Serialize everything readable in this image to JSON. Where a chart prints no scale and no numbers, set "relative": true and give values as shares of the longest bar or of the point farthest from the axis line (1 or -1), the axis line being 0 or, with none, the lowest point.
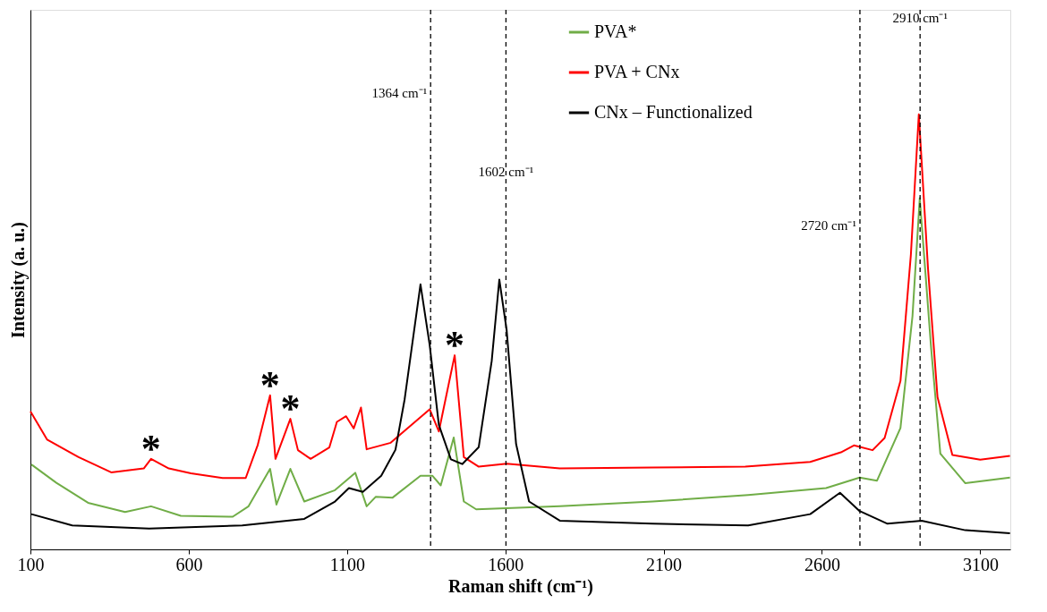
{
  "chart_data": {
    "type": "line",
    "relative": true,
    "xlabel": "Raman shift (cm⁻¹)",
    "ylabel": "Intensity (a. u.)",
    "xlim": [
      100,
      3195
    ],
    "xticks": [
      100,
      600,
      1100,
      1600,
      2100,
      2600,
      3100
    ],
    "grid": false,
    "legend": "top right",
    "line_style": "solid",
    "marker": "none",
    "series": [
      {
        "name": "PVA*",
        "color": "#70ad47",
        "x": [
          103,
          182,
          282,
          399,
          481,
          575,
          739,
          789,
          857,
          877,
          921,
          965,
          1062,
          1126,
          1162,
          1191,
          1244,
          1332,
          1370,
          1396,
          1437,
          1469,
          1508,
          1772,
          2065,
          2367,
          2613,
          2719,
          2774,
          2848,
          2886,
          2909,
          2945,
          2974,
          3053,
          3194
        ],
        "values": [
          0.195,
          0.153,
          0.107,
          0.086,
          0.099,
          0.077,
          0.075,
          0.099,
          0.185,
          0.103,
          0.185,
          0.11,
          0.136,
          0.176,
          0.099,
          0.121,
          0.119,
          0.169,
          0.169,
          0.147,
          0.257,
          0.11,
          0.092,
          0.099,
          0.11,
          0.125,
          0.141,
          0.165,
          0.158,
          0.279,
          0.536,
          0.807,
          0.462,
          0.22,
          0.152,
          0.165
        ]
      },
      {
        "name": "PVA + CNx",
        "color": "#ff0000",
        "x": [
          100,
          153,
          252,
          355,
          458,
          481,
          537,
          607,
          707,
          780,
          818,
          857,
          874,
          921,
          945,
          985,
          1044,
          1068,
          1097,
          1121,
          1144,
          1162,
          1238,
          1361,
          1390,
          1440,
          1469,
          1516,
          1604,
          1772,
          2065,
          2358,
          2563,
          2660,
          2701,
          2760,
          2798,
          2848,
          2881,
          2906,
          2935,
          2965,
          3012,
          3100,
          3194
        ],
        "values": [
          0.317,
          0.252,
          0.212,
          0.177,
          0.186,
          0.208,
          0.186,
          0.175,
          0.164,
          0.164,
          0.24,
          0.354,
          0.208,
          0.3,
          0.228,
          0.208,
          0.234,
          0.293,
          0.306,
          0.278,
          0.326,
          0.23,
          0.245,
          0.322,
          0.271,
          0.446,
          0.212,
          0.19,
          0.197,
          0.186,
          0.188,
          0.19,
          0.201,
          0.223,
          0.239,
          0.228,
          0.256,
          0.387,
          0.678,
          1.0,
          0.646,
          0.35,
          0.217,
          0.206,
          0.215
        ]
      },
      {
        "name": "CNx – Functionalized",
        "color": "#000000",
        "x": [
          103,
          232,
          475,
          769,
          965,
          1062,
          1106,
          1150,
          1208,
          1253,
          1282,
          1332,
          1361,
          1390,
          1428,
          1464,
          1516,
          1557,
          1581,
          1604,
          1634,
          1675,
          1772,
          2065,
          2367,
          2563,
          2657,
          2719,
          2807,
          2915,
          3053,
          3194
        ],
        "values": [
          0.081,
          0.055,
          0.048,
          0.055,
          0.07,
          0.11,
          0.141,
          0.132,
          0.169,
          0.229,
          0.345,
          0.609,
          0.47,
          0.286,
          0.207,
          0.196,
          0.235,
          0.433,
          0.62,
          0.505,
          0.242,
          0.11,
          0.066,
          0.059,
          0.055,
          0.081,
          0.13,
          0.088,
          0.059,
          0.066,
          0.044,
          0.037
        ]
      }
    ],
    "ref_lines": [
      {
        "axis": "x",
        "value": 1364,
        "label": "1364 cm⁻¹",
        "line_style": "dashed",
        "color": "#000000"
      },
      {
        "axis": "x",
        "value": 1602,
        "label": "1602 cm⁻¹",
        "line_style": "dashed",
        "color": "#000000"
      },
      {
        "axis": "x",
        "value": 2720,
        "label": "2720 cm⁻¹",
        "line_style": "dashed",
        "color": "#000000"
      },
      {
        "axis": "x",
        "value": 2910,
        "label": "2910 cm⁻¹",
        "line_style": "dashed",
        "color": "#000000"
      }
    ],
    "annotations": [
      {
        "text": "*",
        "x": 481,
        "y": 0.208
      },
      {
        "text": "*",
        "x": 857,
        "y": 0.354
      },
      {
        "text": "*",
        "x": 921,
        "y": 0.3
      },
      {
        "text": "*",
        "x": 1440,
        "y": 0.446
      }
    ]
  }
}
